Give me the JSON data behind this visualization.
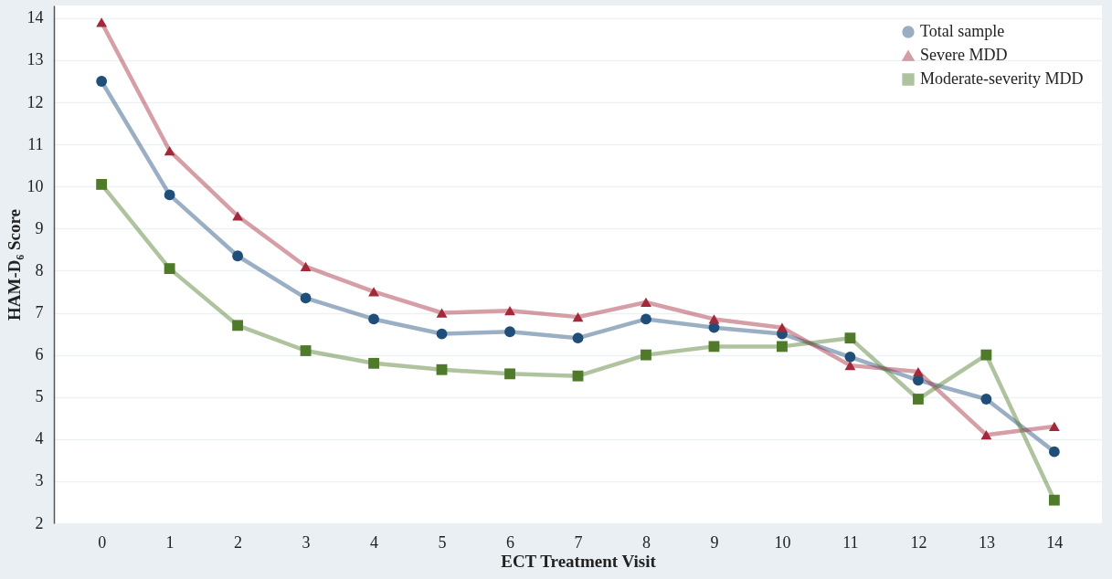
{
  "chart_data": {
    "type": "line",
    "xlabel": "ECT Treatment Visit",
    "ylabel": "HAM-D₆ Score",
    "x": [
      0,
      1,
      2,
      3,
      4,
      5,
      6,
      7,
      8,
      9,
      10,
      11,
      12,
      13,
      14
    ],
    "series": [
      {
        "name": "Total sample",
        "color": "#1f4e79",
        "marker": "circle",
        "values": [
          12.5,
          9.8,
          8.35,
          7.35,
          6.85,
          6.5,
          6.55,
          6.4,
          6.85,
          6.65,
          6.5,
          5.95,
          5.4,
          4.95,
          3.7
        ]
      },
      {
        "name": "Severe MDD",
        "color": "#a3283a",
        "marker": "triangle",
        "values": [
          13.9,
          10.85,
          9.3,
          8.1,
          7.5,
          7.0,
          7.05,
          6.9,
          7.25,
          6.85,
          6.65,
          5.75,
          5.6,
          4.1,
          4.3
        ]
      },
      {
        "name": "Moderate-severity MDD",
        "color": "#4e7a2a",
        "marker": "square",
        "values": [
          10.05,
          8.05,
          6.7,
          6.1,
          5.8,
          5.65,
          5.55,
          5.5,
          6.0,
          6.2,
          6.2,
          6.4,
          4.95,
          6.0,
          2.55
        ]
      }
    ],
    "xlim": [
      -0.7,
      14.7
    ],
    "xticks": [
      0,
      1,
      2,
      3,
      4,
      5,
      6,
      7,
      8,
      9,
      10,
      11,
      12,
      13,
      14
    ],
    "ylim": [
      2,
      14.3
    ],
    "yticks": [
      2,
      3,
      4,
      5,
      6,
      7,
      8,
      9,
      10,
      11,
      12,
      13,
      14
    ],
    "grid": "y",
    "legend": "top right",
    "line_style": "solid"
  }
}
